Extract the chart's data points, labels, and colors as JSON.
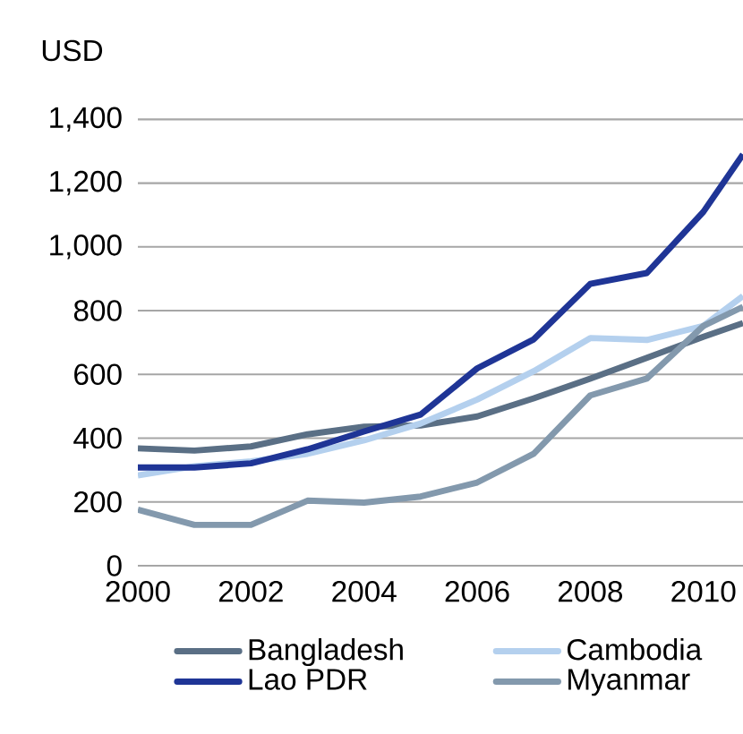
{
  "chart_data": {
    "type": "line",
    "ylabel": "USD",
    "xlim": [
      2000,
      2010.7
    ],
    "ylim": [
      0,
      1400
    ],
    "xticks": [
      2000,
      2002,
      2004,
      2006,
      2008,
      2010
    ],
    "yticks": [
      {
        "value": 0,
        "label": "0"
      },
      {
        "value": 200,
        "label": "200"
      },
      {
        "value": 400,
        "label": "400"
      },
      {
        "value": 600,
        "label": "600"
      },
      {
        "value": 800,
        "label": "800"
      },
      {
        "value": 1000,
        "label": "1,000"
      },
      {
        "value": 1200,
        "label": "1,200"
      },
      {
        "value": 1400,
        "label": "1,400"
      }
    ],
    "grid": "y",
    "legend": "bottom",
    "line_style": "solid",
    "marker": "none",
    "x": [
      2000,
      2001,
      2002,
      2003,
      2004,
      2005,
      2006,
      2007,
      2008,
      2009,
      2010,
      2010.7
    ],
    "series": [
      {
        "name": "Bangladesh",
        "color": "#5a6f85",
        "values": [
          368,
          361,
          374,
          412,
          436,
          440,
          468,
          525,
          587,
          652,
          718,
          761
        ]
      },
      {
        "name": "Cambodia",
        "color": "#b4d0ee",
        "values": [
          283,
          312,
          327,
          351,
          393,
          446,
          521,
          610,
          714,
          708,
          752,
          846
        ]
      },
      {
        "name": "Lao PDR",
        "color": "#1f3596",
        "values": [
          308,
          308,
          321,
          365,
          421,
          474,
          619,
          710,
          884,
          918,
          1110,
          1290
        ]
      },
      {
        "name": "Myanmar",
        "color": "#8399ad",
        "values": [
          176,
          128,
          128,
          204,
          198,
          217,
          261,
          351,
          534,
          587,
          752,
          812
        ]
      }
    ]
  }
}
